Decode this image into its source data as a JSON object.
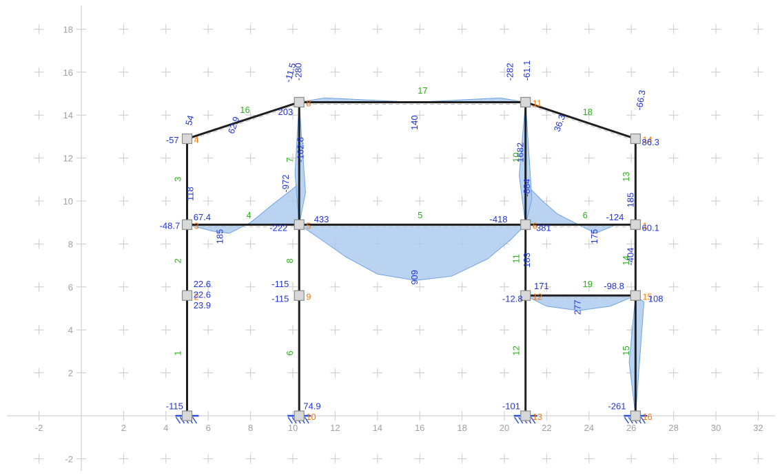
{
  "axes": {
    "x_ticks": [
      "-2",
      "2",
      "4",
      "6",
      "8",
      "10",
      "12",
      "14",
      "16",
      "18",
      "20",
      "22",
      "24",
      "26",
      "28",
      "30",
      "32"
    ],
    "y_ticks": [
      "18",
      "16",
      "14",
      "12",
      "10",
      "8",
      "6",
      "4",
      "2",
      "-2"
    ],
    "xlim": [
      -3,
      33
    ],
    "ylim": [
      -3,
      19
    ],
    "grid": true
  },
  "colors": {
    "member": "#1f1f1f",
    "diagram_fill": "#a7c8ee",
    "diagram_stroke": "#6fa3e0",
    "member_label": "#2fae1e",
    "node_label": "#f07a14",
    "value_label": "#2234d8",
    "grid_cross": "#c9c9c9",
    "axis_line": "#d8d8d8"
  },
  "nodes": [
    {
      "label": "2",
      "x": 5.0,
      "y": 5.6
    },
    {
      "label": "3",
      "x": 5.0,
      "y": 8.9
    },
    {
      "label": "4",
      "x": 5.0,
      "y": 12.9
    },
    {
      "label": "5",
      "x": 10.3,
      "y": 8.9
    },
    {
      "label": "8",
      "x": 10.3,
      "y": 14.6
    },
    {
      "label": "9",
      "x": 10.3,
      "y": 5.6
    },
    {
      "label": "10",
      "x": 10.3,
      "y": 0.0
    },
    {
      "label": "",
      "x": 5.0,
      "y": 0.0
    },
    {
      "label": "6",
      "x": 21.0,
      "y": 8.9
    },
    {
      "label": "11",
      "x": 21.0,
      "y": 14.6
    },
    {
      "label": "12",
      "x": 21.0,
      "y": 5.6
    },
    {
      "label": "13",
      "x": 21.0,
      "y": 0.0
    },
    {
      "label": "1",
      "x": 26.2,
      "y": 8.9
    },
    {
      "label": "16",
      "x": 26.2,
      "y": 0.0
    },
    {
      "label": "15",
      "x": 26.2,
      "y": 5.6
    },
    {
      "label": "14",
      "x": 26.2,
      "y": 12.9
    }
  ],
  "members": [
    {
      "label": "1",
      "x1": 5.0,
      "y1": 0.0,
      "x2": 5.0,
      "y2": 5.6
    },
    {
      "label": "2",
      "x1": 5.0,
      "y1": 5.6,
      "x2": 5.0,
      "y2": 8.9
    },
    {
      "label": "3",
      "x1": 5.0,
      "y1": 8.9,
      "x2": 5.0,
      "y2": 12.9
    },
    {
      "label": "16",
      "x1": 5.0,
      "y1": 12.9,
      "x2": 10.3,
      "y2": 14.6
    },
    {
      "label": "4",
      "x1": 5.0,
      "y1": 8.9,
      "x2": 10.3,
      "y2": 8.9
    },
    {
      "label": "7",
      "x1": 10.3,
      "y1": 8.9,
      "x2": 10.3,
      "y2": 14.6
    },
    {
      "label": "8",
      "x1": 10.3,
      "y1": 5.6,
      "x2": 10.3,
      "y2": 8.9
    },
    {
      "label": "6",
      "x1": 10.3,
      "y1": 0.0,
      "x2": 10.3,
      "y2": 5.6
    },
    {
      "label": "17",
      "x1": 10.3,
      "y1": 14.6,
      "x2": 21.0,
      "y2": 14.6
    },
    {
      "label": "5",
      "x1": 10.3,
      "y1": 8.9,
      "x2": 21.0,
      "y2": 8.9
    },
    {
      "label": "10",
      "x1": 21.0,
      "y1": 8.9,
      "x2": 21.0,
      "y2": 14.6
    },
    {
      "label": "11",
      "x1": 21.0,
      "y1": 5.6,
      "x2": 21.0,
      "y2": 8.9
    },
    {
      "label": "12",
      "x1": 21.0,
      "y1": 0.0,
      "x2": 21.0,
      "y2": 5.6
    },
    {
      "label": "18",
      "x1": 21.0,
      "y1": 14.6,
      "x2": 26.2,
      "y2": 12.9
    },
    {
      "label": "6",
      "x1": 21.0,
      "y1": 8.9,
      "x2": 26.2,
      "y2": 8.9
    },
    {
      "label": "13",
      "x1": 26.2,
      "y1": 8.9,
      "x2": 26.2,
      "y2": 12.9
    },
    {
      "label": "14",
      "x1": 26.2,
      "y1": 5.6,
      "x2": 26.2,
      "y2": 8.9
    },
    {
      "label": "15",
      "x1": 26.2,
      "y1": 0.0,
      "x2": 26.2,
      "y2": 5.6
    },
    {
      "label": "19",
      "x1": 21.0,
      "y1": 5.6,
      "x2": 26.2,
      "y2": 5.6
    }
  ],
  "member_labels": [
    {
      "text": "1",
      "x": 4.7,
      "y": 2.8,
      "rot": -90
    },
    {
      "text": "2",
      "x": 4.7,
      "y": 7.1,
      "rot": -90
    },
    {
      "text": "3",
      "x": 4.7,
      "y": 10.9,
      "rot": -90
    },
    {
      "text": "16",
      "x": 7.5,
      "y": 14.1,
      "rot": 0
    },
    {
      "text": "4",
      "x": 7.8,
      "y": 9.2,
      "rot": 0
    },
    {
      "text": "7",
      "x": 10.0,
      "y": 11.8,
      "rot": -90
    },
    {
      "text": "8",
      "x": 10.0,
      "y": 7.1,
      "rot": -90
    },
    {
      "text": "6",
      "x": 10.0,
      "y": 2.8,
      "rot": -90
    },
    {
      "text": "17",
      "x": 15.9,
      "y": 15.0,
      "rot": 0
    },
    {
      "text": "5",
      "x": 15.9,
      "y": 9.2,
      "rot": 0
    },
    {
      "text": "10",
      "x": 20.7,
      "y": 11.8,
      "rot": -90
    },
    {
      "text": "11",
      "x": 20.7,
      "y": 7.1,
      "rot": -90
    },
    {
      "text": "12",
      "x": 20.7,
      "y": 2.8,
      "rot": -90
    },
    {
      "text": "18",
      "x": 23.7,
      "y": 14.0,
      "rot": 0
    },
    {
      "text": "6",
      "x": 23.7,
      "y": 9.2,
      "rot": 0
    },
    {
      "text": "13",
      "x": 25.9,
      "y": 10.9,
      "rot": -90
    },
    {
      "text": "14",
      "x": 25.9,
      "y": 7.0,
      "rot": -90
    },
    {
      "text": "15",
      "x": 25.9,
      "y": 2.8,
      "rot": -90
    },
    {
      "text": "19",
      "x": 23.7,
      "y": 6.0,
      "rot": 0
    }
  ],
  "value_labels": [
    {
      "text": "-115",
      "x": 4.0,
      "y": 0.3,
      "rot": 0
    },
    {
      "text": "-57",
      "x": 4.0,
      "y": 12.7,
      "rot": 0
    },
    {
      "text": "54",
      "x": 5.2,
      "y": 13.5,
      "rot": -75
    },
    {
      "text": "-48.7",
      "x": 3.7,
      "y": 8.7,
      "rot": 0
    },
    {
      "text": "67.4",
      "x": 5.3,
      "y": 9.1,
      "rot": 0
    },
    {
      "text": "118",
      "x": 5.3,
      "y": 10.0,
      "rot": -90
    },
    {
      "text": "185",
      "x": 6.7,
      "y": 8.0,
      "rot": -90
    },
    {
      "text": "22.6",
      "x": 5.3,
      "y": 6.0,
      "rot": 0
    },
    {
      "text": "22.6",
      "x": 5.3,
      "y": 5.5,
      "rot": 0
    },
    {
      "text": "23.9",
      "x": 5.3,
      "y": 5.0,
      "rot": 0
    },
    {
      "text": "62.9",
      "x": 7.2,
      "y": 13.1,
      "rot": -70
    },
    {
      "text": "203",
      "x": 9.3,
      "y": 14.0,
      "rot": 0
    },
    {
      "text": "-11.5",
      "x": 9.9,
      "y": 15.5,
      "rot": -75
    },
    {
      "text": "-280",
      "x": 10.4,
      "y": 15.6,
      "rot": -90
    },
    {
      "text": "-162.8",
      "x": 10.5,
      "y": 11.8,
      "rot": -90
    },
    {
      "text": "-972",
      "x": 9.8,
      "y": 10.4,
      "rot": -90
    },
    {
      "text": "-222",
      "x": 8.9,
      "y": 8.6,
      "rot": 0
    },
    {
      "text": "433",
      "x": 11.0,
      "y": 9.0,
      "rot": 0
    },
    {
      "text": "-115",
      "x": 9.0,
      "y": 6.0,
      "rot": 0
    },
    {
      "text": "-115",
      "x": 9.0,
      "y": 5.3,
      "rot": 0
    },
    {
      "text": "74.9",
      "x": 10.5,
      "y": 0.3,
      "rot": 0
    },
    {
      "text": "140",
      "x": 15.9,
      "y": 13.3,
      "rot": -90
    },
    {
      "text": "909",
      "x": 15.9,
      "y": 6.1,
      "rot": -90
    },
    {
      "text": "-418",
      "x": 19.3,
      "y": 9.0,
      "rot": 0
    },
    {
      "text": "-282",
      "x": 20.4,
      "y": 15.6,
      "rot": -90
    },
    {
      "text": "-61.1",
      "x": 21.2,
      "y": 15.6,
      "rot": -90
    },
    {
      "text": "1682",
      "x": 20.9,
      "y": 11.8,
      "rot": -90
    },
    {
      "text": "-884",
      "x": 21.2,
      "y": 10.2,
      "rot": -90
    },
    {
      "text": "381",
      "x": 21.5,
      "y": 8.6,
      "rot": 0
    },
    {
      "text": "183",
      "x": 21.2,
      "y": 6.9,
      "rot": -90
    },
    {
      "text": "171",
      "x": 21.4,
      "y": 5.9,
      "rot": 0
    },
    {
      "text": "-12.8",
      "x": 19.9,
      "y": 5.3,
      "rot": 0
    },
    {
      "text": "-101",
      "x": 19.9,
      "y": 0.3,
      "rot": 0
    },
    {
      "text": "36.3",
      "x": 22.6,
      "y": 13.2,
      "rot": -70
    },
    {
      "text": "-66.3",
      "x": 26.5,
      "y": 14.2,
      "rot": -80
    },
    {
      "text": "86.3",
      "x": 26.5,
      "y": 12.6,
      "rot": 0
    },
    {
      "text": "185",
      "x": 26.1,
      "y": 9.7,
      "rot": -90
    },
    {
      "text": "-124",
      "x": 24.8,
      "y": 9.1,
      "rot": 0
    },
    {
      "text": "60.1",
      "x": 26.5,
      "y": 8.6,
      "rot": 0
    },
    {
      "text": "175",
      "x": 24.4,
      "y": 8.0,
      "rot": -90
    },
    {
      "text": "-404",
      "x": 26.1,
      "y": 7.0,
      "rot": -90
    },
    {
      "text": "-98.8",
      "x": 24.7,
      "y": 5.9,
      "rot": 0
    },
    {
      "text": "108",
      "x": 26.8,
      "y": 5.3,
      "rot": 0
    },
    {
      "text": "277",
      "x": 23.6,
      "y": 4.7,
      "rot": -90
    },
    {
      "text": "-261",
      "x": 24.9,
      "y": 0.3,
      "rot": 0
    }
  ],
  "diagram_shapes": [
    {
      "name": "diagram-beam5",
      "pts": [
        [
          10.3,
          8.9
        ],
        [
          11.2,
          8.3
        ],
        [
          12.5,
          7.4
        ],
        [
          14.0,
          6.6
        ],
        [
          15.8,
          6.3
        ],
        [
          17.5,
          6.5
        ],
        [
          19.2,
          7.3
        ],
        [
          20.3,
          8.2
        ],
        [
          21.0,
          8.9
        ]
      ]
    },
    {
      "name": "diagram-beam4",
      "pts": [
        [
          5.0,
          8.9
        ],
        [
          6.2,
          8.6
        ],
        [
          7.0,
          8.5
        ],
        [
          8.0,
          9.0
        ],
        [
          9.0,
          9.8
        ],
        [
          10.3,
          10.8
        ],
        [
          10.3,
          8.9
        ]
      ]
    },
    {
      "name": "diagram-beam6",
      "pts": [
        [
          21.0,
          8.9
        ],
        [
          21.0,
          10.8
        ],
        [
          21.8,
          10.0
        ],
        [
          22.5,
          9.4
        ],
        [
          23.5,
          8.9
        ],
        [
          24.3,
          8.5
        ],
        [
          25.3,
          8.9
        ],
        [
          26.2,
          8.9
        ]
      ]
    },
    {
      "name": "diagram-col7",
      "pts": [
        [
          10.3,
          14.6
        ],
        [
          10.1,
          11.3
        ],
        [
          10.3,
          8.9
        ],
        [
          10.6,
          10.4
        ],
        [
          10.3,
          14.6
        ]
      ]
    },
    {
      "name": "diagram-col10",
      "pts": [
        [
          21.0,
          14.6
        ],
        [
          20.7,
          11.2
        ],
        [
          21.0,
          8.9
        ],
        [
          21.3,
          10.1
        ],
        [
          21.0,
          14.6
        ]
      ]
    },
    {
      "name": "diagram-beam19",
      "pts": [
        [
          21.0,
          5.6
        ],
        [
          22.0,
          5.1
        ],
        [
          23.5,
          4.9
        ],
        [
          25.0,
          5.1
        ],
        [
          26.2,
          5.6
        ]
      ]
    },
    {
      "name": "diagram-col15",
      "pts": [
        [
          26.2,
          5.6
        ],
        [
          26.6,
          5.3
        ],
        [
          26.2,
          0.0
        ],
        [
          25.9,
          2.5
        ],
        [
          26.2,
          5.6
        ]
      ]
    },
    {
      "name": "diagram-beam17",
      "pts": [
        [
          10.3,
          14.6
        ],
        [
          11.5,
          14.8
        ],
        [
          15.8,
          14.6
        ],
        [
          19.8,
          14.8
        ],
        [
          21.0,
          14.6
        ]
      ]
    }
  ]
}
